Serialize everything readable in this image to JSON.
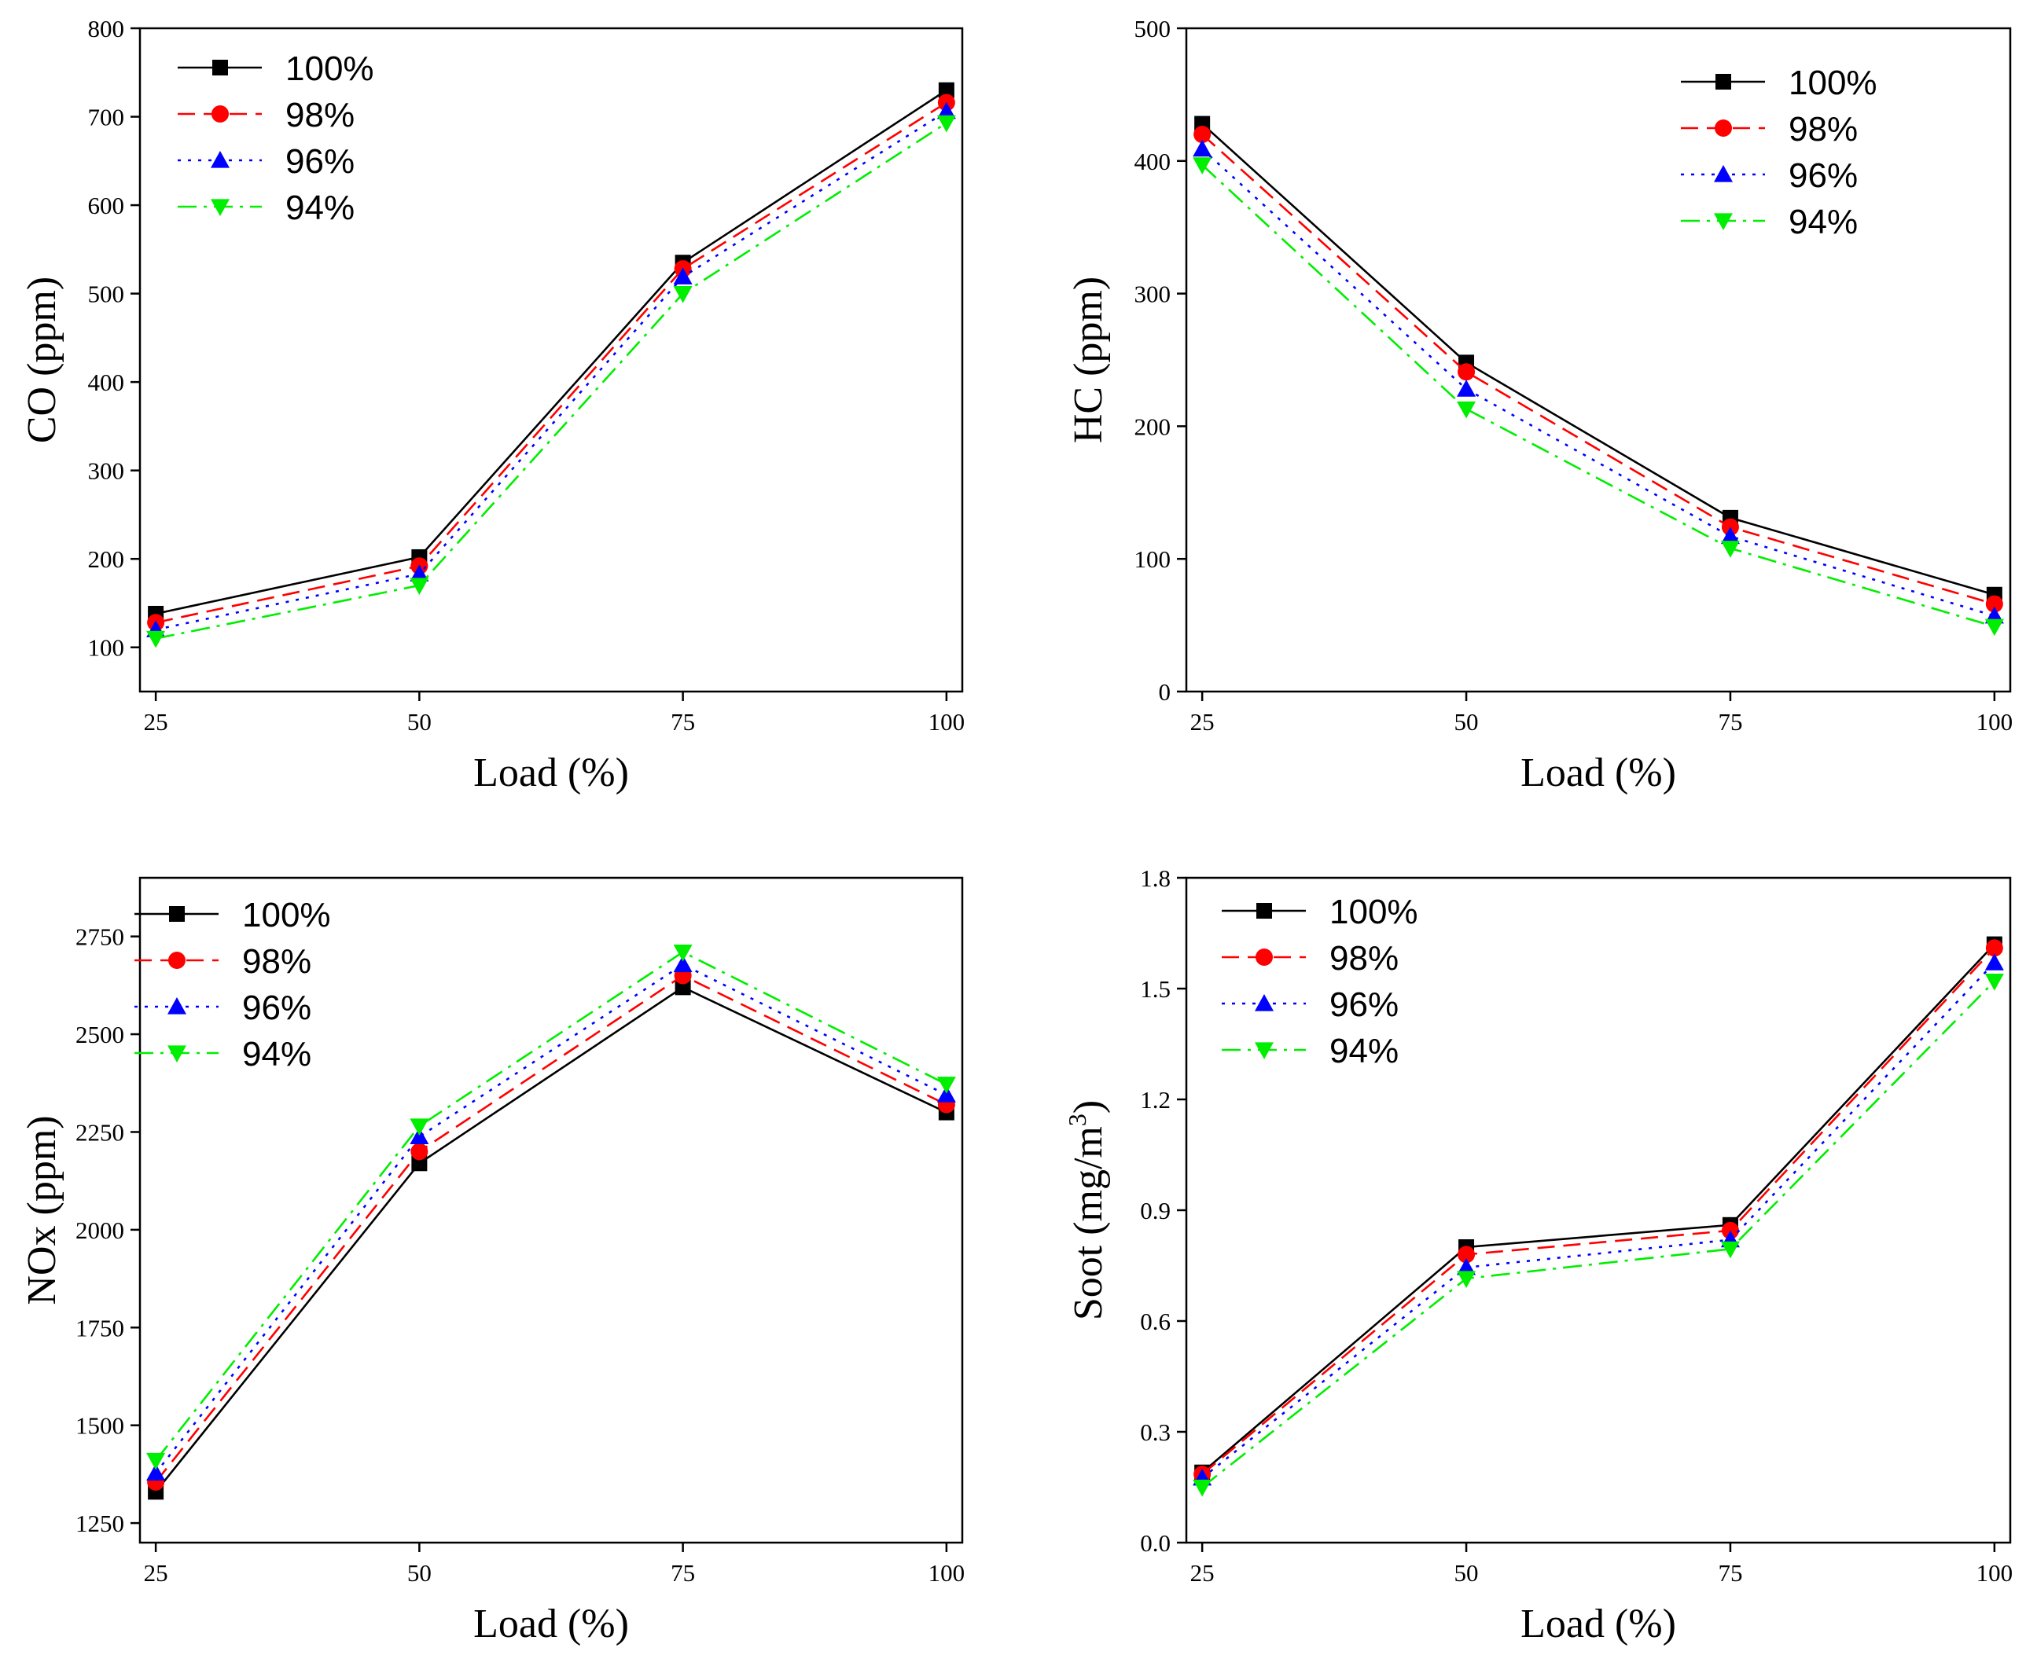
{
  "chart_data": [
    {
      "id": "co",
      "type": "line",
      "title": "",
      "xlabel": "Load (%)",
      "ylabel": "CO (ppm)",
      "x": [
        25,
        50,
        75,
        100
      ],
      "xlim": [
        23.5,
        101.5
      ],
      "ylim": [
        50,
        800
      ],
      "yticks": [
        100,
        200,
        300,
        400,
        500,
        600,
        700,
        800
      ],
      "legend_position": "top-left",
      "series": [
        {
          "name": "100%",
          "color": "#000000",
          "marker": "square",
          "dash": "solid",
          "values": [
            138,
            202,
            535,
            730
          ]
        },
        {
          "name": "98%",
          "color": "#ff0000",
          "marker": "circle",
          "dash": "dashed",
          "values": [
            128,
            192,
            528,
            716
          ]
        },
        {
          "name": "96%",
          "color": "#0000ff",
          "marker": "triangle-up",
          "dash": "dotted",
          "values": [
            120,
            183,
            519,
            706
          ]
        },
        {
          "name": "94%",
          "color": "#00ee00",
          "marker": "triangle-down",
          "dash": "dashdot",
          "values": [
            110,
            170,
            500,
            693
          ]
        }
      ]
    },
    {
      "id": "hc",
      "type": "line",
      "title": "",
      "xlabel": "Load (%)",
      "ylabel": "HC (ppm)",
      "x": [
        25,
        50,
        75,
        100
      ],
      "xlim": [
        23.5,
        101.5
      ],
      "ylim": [
        0,
        500
      ],
      "yticks": [
        0,
        100,
        200,
        300,
        400,
        500
      ],
      "legend_position": "top-right",
      "series": [
        {
          "name": "100%",
          "color": "#000000",
          "marker": "square",
          "dash": "solid",
          "values": [
            428,
            248,
            131,
            73
          ]
        },
        {
          "name": "98%",
          "color": "#ff0000",
          "marker": "circle",
          "dash": "dashed",
          "values": [
            420,
            241,
            124,
            66
          ]
        },
        {
          "name": "96%",
          "color": "#0000ff",
          "marker": "triangle-up",
          "dash": "dotted",
          "values": [
            409,
            228,
            117,
            57
          ]
        },
        {
          "name": "94%",
          "color": "#00ee00",
          "marker": "triangle-down",
          "dash": "dashdot",
          "values": [
            397,
            213,
            108,
            49
          ]
        }
      ]
    },
    {
      "id": "nox",
      "type": "line",
      "title": "",
      "xlabel": "Load (%)",
      "ylabel": "NOx (ppm)",
      "x": [
        25,
        50,
        75,
        100
      ],
      "xlim": [
        23.5,
        101.5
      ],
      "ylim": [
        1200,
        2900
      ],
      "yticks": [
        1250,
        1500,
        1750,
        2000,
        2250,
        2500,
        2750
      ],
      "legend_position": "top-left",
      "series": [
        {
          "name": "100%",
          "color": "#000000",
          "marker": "square",
          "dash": "solid",
          "values": [
            1330,
            2170,
            2620,
            2300
          ]
        },
        {
          "name": "98%",
          "color": "#ff0000",
          "marker": "circle",
          "dash": "dashed",
          "values": [
            1355,
            2200,
            2650,
            2320
          ]
        },
        {
          "name": "96%",
          "color": "#0000ff",
          "marker": "triangle-up",
          "dash": "dotted",
          "values": [
            1378,
            2238,
            2678,
            2345
          ]
        },
        {
          "name": "94%",
          "color": "#00ee00",
          "marker": "triangle-down",
          "dash": "dashdot",
          "values": [
            1410,
            2265,
            2710,
            2372
          ]
        }
      ]
    },
    {
      "id": "soot",
      "type": "line",
      "title": "",
      "xlabel": "Load (%)",
      "ylabel": "Soot (mg/m",
      "ylabel_sup": "3",
      "ylabel_close": ")",
      "x": [
        25,
        50,
        75,
        100
      ],
      "xlim": [
        23.5,
        101.5
      ],
      "ylim": [
        0,
        1.8
      ],
      "yticks": [
        0.0,
        0.3,
        0.6,
        0.9,
        1.2,
        1.5,
        1.8
      ],
      "ytick_labels": [
        "0.0",
        "0.3",
        "0.6",
        "0.9",
        "1.2",
        "1.5",
        "1.8"
      ],
      "legend_position": "top-left",
      "series": [
        {
          "name": "100%",
          "color": "#000000",
          "marker": "square",
          "dash": "solid",
          "values": [
            0.19,
            0.8,
            0.86,
            1.62
          ]
        },
        {
          "name": "98%",
          "color": "#ff0000",
          "marker": "circle",
          "dash": "dashed",
          "values": [
            0.185,
            0.78,
            0.845,
            1.61
          ]
        },
        {
          "name": "96%",
          "color": "#0000ff",
          "marker": "triangle-up",
          "dash": "dotted",
          "values": [
            0.175,
            0.745,
            0.82,
            1.57
          ]
        },
        {
          "name": "94%",
          "color": "#00ee00",
          "marker": "triangle-down",
          "dash": "dashdot",
          "values": [
            0.15,
            0.715,
            0.795,
            1.52
          ]
        }
      ]
    }
  ]
}
